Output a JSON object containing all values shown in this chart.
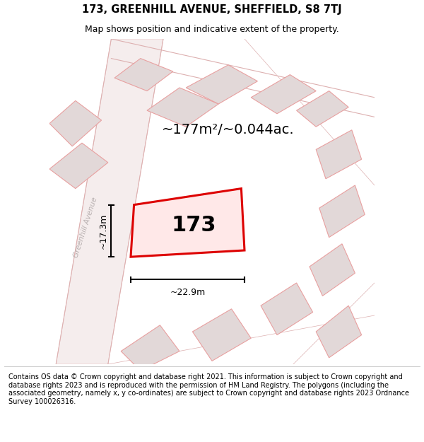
{
  "title": "173, GREENHILL AVENUE, SHEFFIELD, S8 7TJ",
  "subtitle": "Map shows position and indicative extent of the property.",
  "footer": "Contains OS data © Crown copyright and database right 2021. This information is subject to Crown copyright and database rights 2023 and is reproduced with the permission of HM Land Registry. The polygons (including the associated geometry, namely x, y co-ordinates) are subject to Crown copyright and database rights 2023 Ordnance Survey 100026316.",
  "area_label": "~177m²/~0.044ac.",
  "width_label": "~22.9m",
  "height_label": "~17.3m",
  "number_label": "173",
  "background_color": "#ffffff",
  "map_bg_color": "#f7f0f0",
  "building_fill": "#e2d8d8",
  "building_stroke": "#e8a0a0",
  "highlight_fill": "#ffe8e8",
  "highlight_stroke": "#dd0000",
  "road_fill": "#f5eded",
  "road_stroke": "#e8c0c0",
  "street_label": "Greenhill Avenue",
  "title_fontsize": 10.5,
  "subtitle_fontsize": 9,
  "footer_fontsize": 7.0,
  "area_fontsize": 14,
  "number_fontsize": 22,
  "measure_fontsize": 9
}
